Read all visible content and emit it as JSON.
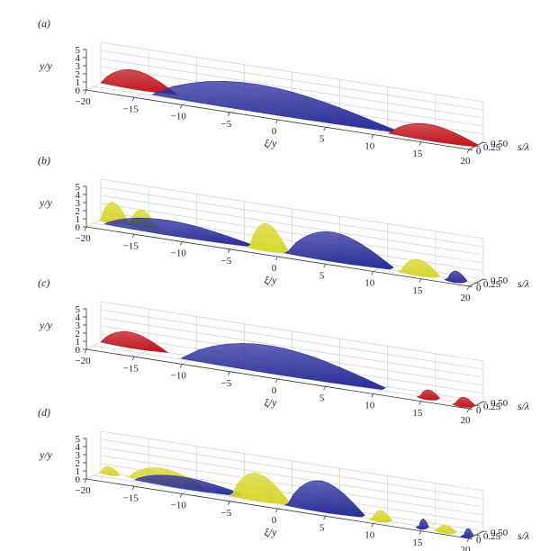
{
  "chart_data": [
    {
      "panel": "(a)",
      "type": "3d-isosurface",
      "xlabel": "ξ/y_p",
      "ylabel": "y/y_p",
      "zlabel": "s/λ_θ",
      "x_ticks": [
        "−20",
        "−15",
        "−10",
        "−5",
        "0",
        "5",
        "10",
        "15",
        "20"
      ],
      "y_ticks": [
        "0",
        "1",
        "2",
        "3",
        "4",
        "5"
      ],
      "z_ticks": [
        "0",
        "0.25",
        "0.50"
      ],
      "blobs": [
        {
          "color": "#c0141c",
          "x0": -20,
          "x1": -12,
          "h": 2.2,
          "z": 0.5
        },
        {
          "color": "#2a2f9a",
          "x0": -14,
          "x1": 11,
          "h": 3.0,
          "z": 0.3
        },
        {
          "color": "#c0141c",
          "x0": 11,
          "x1": 20,
          "h": 1.6,
          "z": 0.2
        }
      ]
    },
    {
      "panel": "(b)",
      "type": "3d-isosurface",
      "xlabel": "ξ/y_p",
      "ylabel": "y/y_p",
      "zlabel": "s/λ_θ",
      "x_ticks": [
        "−20",
        "−15",
        "−10",
        "−5",
        "0",
        "5",
        "10",
        "15",
        "20"
      ],
      "y_ticks": [
        "0",
        "1",
        "2",
        "3",
        "4",
        "5"
      ],
      "z_ticks": [
        "0",
        "0.25",
        "0.50"
      ],
      "blobs": [
        {
          "color": "#d8d62a",
          "x0": -20,
          "x1": -17,
          "h": 2.4,
          "z": 0.45
        },
        {
          "color": "#d8d62a",
          "x0": -17,
          "x1": -14,
          "h": 2.0,
          "z": 0.45
        },
        {
          "color": "#2a2f9a",
          "x0": -19,
          "x1": -4,
          "h": 1.4,
          "z": 0.3
        },
        {
          "color": "#d8d62a",
          "x0": -4,
          "x1": 0,
          "h": 3.0,
          "z": 0.25
        },
        {
          "color": "#2a2f9a",
          "x0": 0,
          "x1": 11,
          "h": 3.2,
          "z": 0.25
        },
        {
          "color": "#d8d62a",
          "x0": 12,
          "x1": 16,
          "h": 1.6,
          "z": 0.2
        },
        {
          "color": "#2a2f9a",
          "x0": 17,
          "x1": 19,
          "h": 1.0,
          "z": 0.15
        }
      ]
    },
    {
      "panel": "(c)",
      "type": "3d-isosurface",
      "xlabel": "ξ/y_p",
      "ylabel": "y/y_p",
      "zlabel": "s/λ_θ",
      "x_ticks": [
        "−20",
        "−15",
        "−10",
        "−5",
        "0",
        "5",
        "10",
        "15",
        "20"
      ],
      "y_ticks": [
        "0",
        "1",
        "2",
        "3",
        "4",
        "5"
      ],
      "z_ticks": [
        "0",
        "0.25",
        "0.50"
      ],
      "blobs": [
        {
          "color": "#c0141c",
          "x0": -20,
          "x1": -13,
          "h": 1.8,
          "z": 0.5
        },
        {
          "color": "#2a2f9a",
          "x0": -11,
          "x1": 10,
          "h": 3.0,
          "z": 0.3
        },
        {
          "color": "#c0141c",
          "x0": 14,
          "x1": 16,
          "h": 0.8,
          "z": 0.2
        },
        {
          "color": "#c0141c",
          "x0": 18,
          "x1": 20,
          "h": 0.8,
          "z": 0.1
        }
      ]
    },
    {
      "panel": "(d)",
      "type": "3d-isosurface",
      "xlabel": "ξ/y_p",
      "ylabel": "y/y_p",
      "zlabel": "s/λ_θ",
      "x_ticks": [
        "−20",
        "−15",
        "−10",
        "−5",
        "0",
        "5",
        "10",
        "15",
        "20"
      ],
      "y_ticks": [
        "0",
        "1",
        "2",
        "3",
        "4",
        "5"
      ],
      "z_ticks": [
        "0",
        "0.25",
        "0.50"
      ],
      "blobs": [
        {
          "color": "#d8d62a",
          "x0": -20,
          "x1": -18,
          "h": 0.8,
          "z": 0.45
        },
        {
          "color": "#d8d62a",
          "x0": -17,
          "x1": -9,
          "h": 1.6,
          "z": 0.45
        },
        {
          "color": "#2a2f9a",
          "x0": -16,
          "x1": -5,
          "h": 1.0,
          "z": 0.35
        },
        {
          "color": "#d8d62a",
          "x0": -6,
          "x1": 0,
          "h": 3.0,
          "z": 0.3
        },
        {
          "color": "#2a2f9a",
          "x0": 0,
          "x1": 8,
          "h": 3.4,
          "z": 0.25
        },
        {
          "color": "#d8d62a",
          "x0": 9,
          "x1": 11,
          "h": 1.0,
          "z": 0.2
        },
        {
          "color": "#2a2f9a",
          "x0": 14,
          "x1": 15,
          "h": 0.9,
          "z": 0.15
        },
        {
          "color": "#d8d62a",
          "x0": 16,
          "x1": 18,
          "h": 0.6,
          "z": 0.12
        },
        {
          "color": "#2a2f9a",
          "x0": 19,
          "x1": 20,
          "h": 0.8,
          "z": 0.05
        }
      ]
    }
  ]
}
